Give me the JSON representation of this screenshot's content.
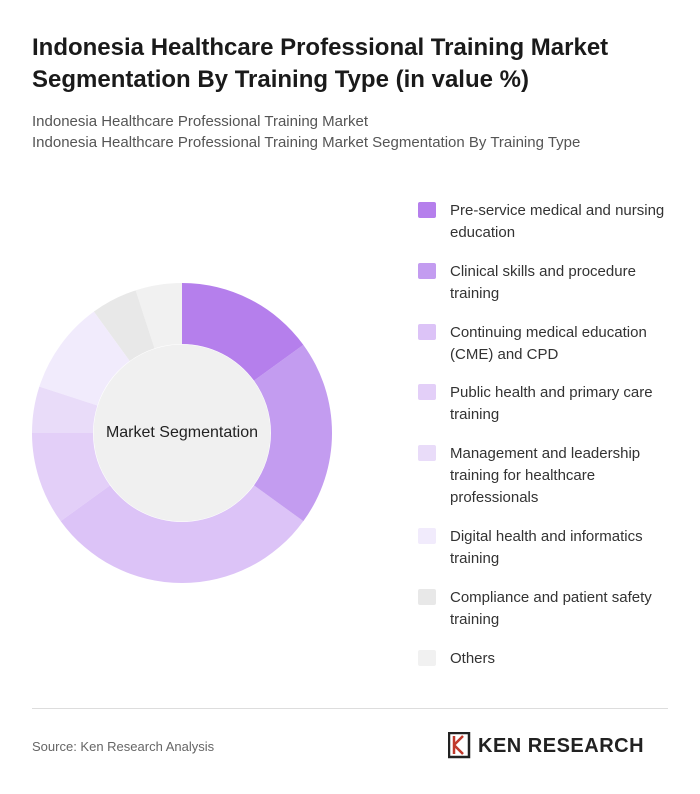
{
  "chart_data": {
    "type": "donut",
    "title": "Indonesia Healthcare Professional Training Market Segmentation By Training Type (in value %)",
    "subtitles": [
      "Indonesia Healthcare Professional Training Market",
      "Indonesia Healthcare Professional Training Market Segmentation By Training Type"
    ],
    "center_label": "Market Segmentation",
    "categories": [
      "Pre-service medical and nursing education",
      "Clinical skills and procedure training",
      "Continuing medical education (CME) and CPD",
      "Public health and primary care training",
      "Management and leadership training for healthcare professionals",
      "Digital health and informatics training",
      "Compliance and patient safety training",
      "Others"
    ],
    "values": [
      15,
      20,
      30,
      10,
      5,
      10,
      5,
      5
    ],
    "colors": [
      "#b57fec",
      "#c39cf0",
      "#dcc3f7",
      "#e3cff8",
      "#e9dcf9",
      "#f1ebfc",
      "#e8e8e8",
      "#f1f1f1"
    ],
    "source": "Source: Ken Research Analysis",
    "logo": "KEN RESEARCH"
  }
}
